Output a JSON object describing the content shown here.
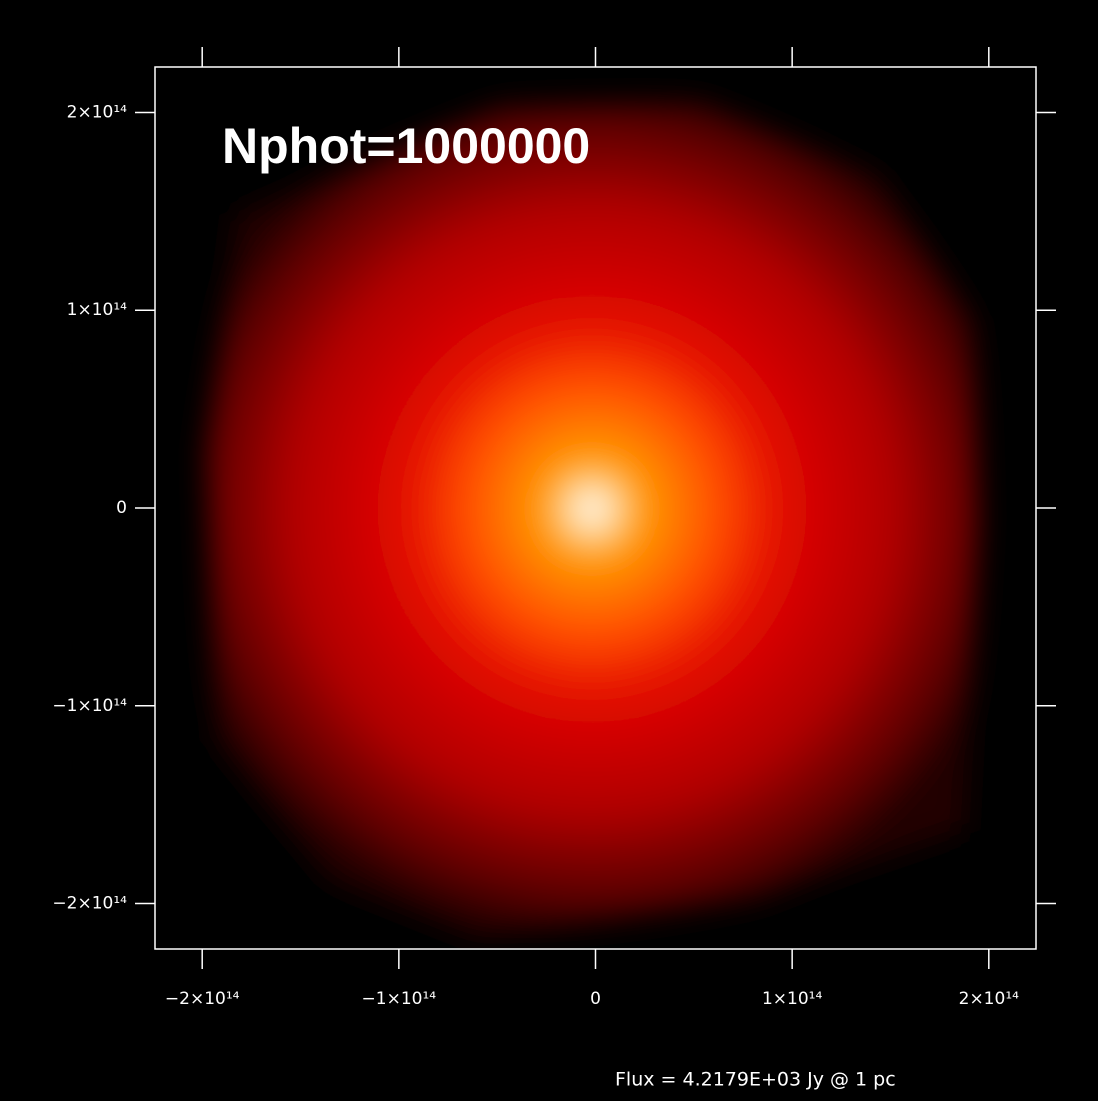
{
  "chart_data": {
    "type": "image",
    "annotation": "Nphot=1000000",
    "footer": "Flux = 4.2179E+03 Jy @ 1 pc",
    "xlim": [
      -224000000000000.0,
      224000000000000.0
    ],
    "ylim": [
      -223000000000000.0,
      223000000000000.0
    ],
    "xticks": [
      {
        "value": -200000000000000.0,
        "label": "−2×10¹⁴"
      },
      {
        "value": -100000000000000.0,
        "label": "−1×10¹⁴"
      },
      0,
      {
        "value": 100000000000000.0,
        "label": "1×10¹⁴"
      },
      {
        "value": 200000000000000.0,
        "label": "2×10¹⁴"
      }
    ],
    "yticks": [
      {
        "value": -200000000000000.0,
        "label": "−2×10¹⁴"
      },
      {
        "value": -100000000000000.0,
        "label": "−1×10¹⁴"
      },
      0,
      {
        "value": 100000000000000.0,
        "label": "1×10¹⁴"
      },
      {
        "value": 200000000000000.0,
        "label": "2×10¹⁴"
      }
    ]
  }
}
